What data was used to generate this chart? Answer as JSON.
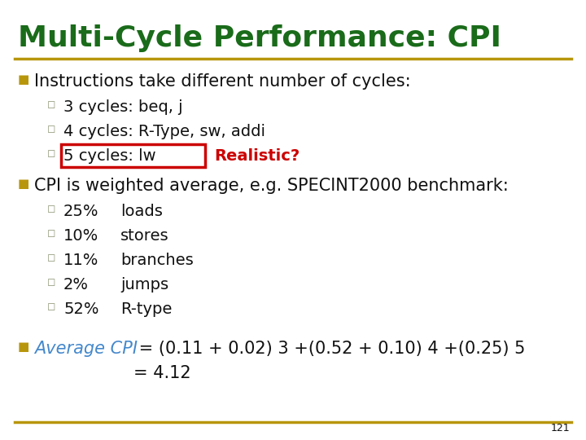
{
  "title": "Multi-Cycle Performance: CPI",
  "title_color": "#1a6b1a",
  "bg_color": "#ffffff",
  "divider_color": "#b8960c",
  "bullet_color": "#b8960c",
  "sub_bullet_color": "#909878",
  "text_color": "#111111",
  "italic_blue_color": "#4488cc",
  "red_color": "#cc0000",
  "page_number": "121",
  "line1": "Instructions take different number of cycles:",
  "sub1_1": "3 cycles: beq, j",
  "sub1_2": "4 cycles: R-Type, sw, addi",
  "sub1_3": "5 cycles: lw",
  "sub1_3_red": "Realistic?",
  "line2": "CPI is weighted average, e.g. SPECINT2000 benchmark:",
  "sub2_items": [
    "25%",
    "loads",
    "10%",
    "stores",
    "11%",
    "branches",
    "2%",
    "jumps",
    "52%",
    "R-type"
  ],
  "line3_italic": "Average CPI",
  "line3_rest": " = (0.11 + 0.02) 3 +(0.52 + 0.10) 4 +(0.25) 5",
  "line3_2": "= 4.12"
}
